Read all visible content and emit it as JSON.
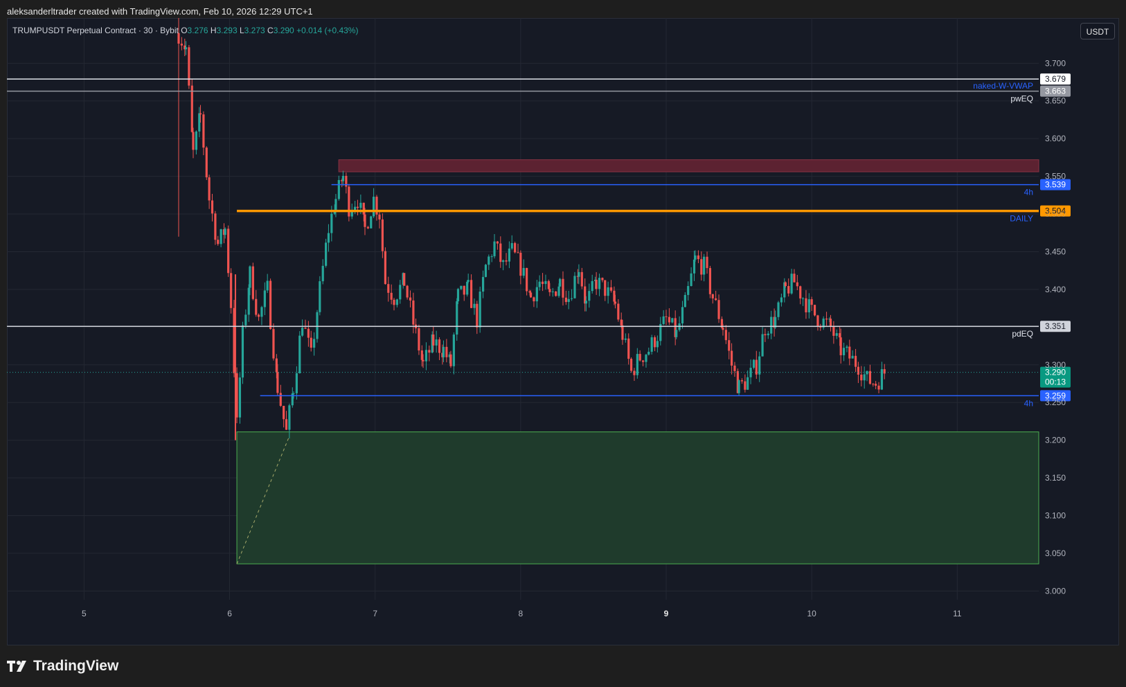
{
  "credit": "aleksanderltrader created with TradingView.com, Feb 10, 2026 12:29 UTC+1",
  "brand": "TradingView",
  "legend": {
    "symbol": "TRUMPUSDT Perpetual Contract · 30 · Bybit",
    "o_label": "O",
    "o": "3.276",
    "h_label": "H",
    "h": "3.293",
    "l_label": "L",
    "l": "3.273",
    "c_label": "C",
    "c": "3.290",
    "change": "+0.014 (+0.43%)"
  },
  "currency": "USDT",
  "colors": {
    "background": "#161a25",
    "up": "#26a69a",
    "down": "#ef5350",
    "grid": "#242833",
    "blue_line": "#2962ff",
    "orange_line": "#ff9800",
    "white_line": "#e0e3eb"
  },
  "chart_data": {
    "type": "candlestick",
    "x_ticks": [
      {
        "label": "5",
        "day": 5
      },
      {
        "label": "6",
        "day": 6
      },
      {
        "label": "7",
        "day": 7
      },
      {
        "label": "8",
        "day": 8
      },
      {
        "label": "9",
        "day": 9
      },
      {
        "label": "10",
        "day": 10
      },
      {
        "label": "11",
        "day": 11
      }
    ],
    "y_ticks": [
      "3.700",
      "3.650",
      "3.600",
      "3.550",
      "3.500",
      "3.450",
      "3.400",
      "3.350",
      "3.300",
      "3.250",
      "3.200",
      "3.150",
      "3.100",
      "3.050",
      "3.000"
    ],
    "ylim": [
      2.97,
      3.76
    ],
    "xlim": [
      4.47,
      11.56
    ],
    "anchors": [
      {
        "day": 5.65,
        "price": 3.74
      },
      {
        "day": 5.7,
        "price": 3.72
      },
      {
        "day": 5.75,
        "price": 3.58
      },
      {
        "day": 5.8,
        "price": 3.63
      },
      {
        "day": 5.86,
        "price": 3.52
      },
      {
        "day": 5.92,
        "price": 3.46
      },
      {
        "day": 5.97,
        "price": 3.48
      },
      {
        "day": 6.01,
        "price": 3.38
      },
      {
        "day": 6.05,
        "price": 3.22
      },
      {
        "day": 6.09,
        "price": 3.34
      },
      {
        "day": 6.14,
        "price": 3.42
      },
      {
        "day": 6.2,
        "price": 3.36
      },
      {
        "day": 6.26,
        "price": 3.4
      },
      {
        "day": 6.33,
        "price": 3.27
      },
      {
        "day": 6.39,
        "price": 3.21
      },
      {
        "day": 6.44,
        "price": 3.27
      },
      {
        "day": 6.5,
        "price": 3.36
      },
      {
        "day": 6.56,
        "price": 3.31
      },
      {
        "day": 6.62,
        "price": 3.4
      },
      {
        "day": 6.68,
        "price": 3.48
      },
      {
        "day": 6.73,
        "price": 3.52
      },
      {
        "day": 6.78,
        "price": 3.55
      },
      {
        "day": 6.82,
        "price": 3.51
      },
      {
        "day": 6.88,
        "price": 3.52
      },
      {
        "day": 6.93,
        "price": 3.48
      },
      {
        "day": 6.99,
        "price": 3.52
      },
      {
        "day": 7.03,
        "price": 3.5
      },
      {
        "day": 7.07,
        "price": 3.41
      },
      {
        "day": 7.13,
        "price": 3.39
      },
      {
        "day": 7.2,
        "price": 3.41
      },
      {
        "day": 7.28,
        "price": 3.34
      },
      {
        "day": 7.33,
        "price": 3.3
      },
      {
        "day": 7.4,
        "price": 3.33
      },
      {
        "day": 7.47,
        "price": 3.32
      },
      {
        "day": 7.52,
        "price": 3.3
      },
      {
        "day": 7.57,
        "price": 3.39
      },
      {
        "day": 7.64,
        "price": 3.4
      },
      {
        "day": 7.7,
        "price": 3.36
      },
      {
        "day": 7.76,
        "price": 3.43
      },
      {
        "day": 7.82,
        "price": 3.46
      },
      {
        "day": 7.88,
        "price": 3.43
      },
      {
        "day": 7.94,
        "price": 3.45
      },
      {
        "day": 8.0,
        "price": 3.43
      },
      {
        "day": 8.07,
        "price": 3.39
      },
      {
        "day": 8.13,
        "price": 3.41
      },
      {
        "day": 8.2,
        "price": 3.39
      },
      {
        "day": 8.27,
        "price": 3.41
      },
      {
        "day": 8.33,
        "price": 3.39
      },
      {
        "day": 8.4,
        "price": 3.43
      },
      {
        "day": 8.45,
        "price": 3.38
      },
      {
        "day": 8.52,
        "price": 3.41
      },
      {
        "day": 8.58,
        "price": 3.4
      },
      {
        "day": 8.65,
        "price": 3.38
      },
      {
        "day": 8.7,
        "price": 3.34
      },
      {
        "day": 8.76,
        "price": 3.29
      },
      {
        "day": 8.82,
        "price": 3.31
      },
      {
        "day": 8.88,
        "price": 3.32
      },
      {
        "day": 8.94,
        "price": 3.34
      },
      {
        "day": 9.0,
        "price": 3.36
      },
      {
        "day": 9.07,
        "price": 3.34
      },
      {
        "day": 9.13,
        "price": 3.38
      },
      {
        "day": 9.2,
        "price": 3.44
      },
      {
        "day": 9.26,
        "price": 3.43
      },
      {
        "day": 9.32,
        "price": 3.39
      },
      {
        "day": 9.39,
        "price": 3.35
      },
      {
        "day": 9.45,
        "price": 3.3
      },
      {
        "day": 9.5,
        "price": 3.27
      },
      {
        "day": 9.56,
        "price": 3.28
      },
      {
        "day": 9.62,
        "price": 3.3
      },
      {
        "day": 9.68,
        "price": 3.35
      },
      {
        "day": 9.75,
        "price": 3.36
      },
      {
        "day": 9.82,
        "price": 3.4
      },
      {
        "day": 9.88,
        "price": 3.41
      },
      {
        "day": 9.94,
        "price": 3.39
      },
      {
        "day": 10.0,
        "price": 3.37
      },
      {
        "day": 10.06,
        "price": 3.36
      },
      {
        "day": 10.13,
        "price": 3.35
      },
      {
        "day": 10.2,
        "price": 3.32
      },
      {
        "day": 10.26,
        "price": 3.31
      },
      {
        "day": 10.32,
        "price": 3.3
      },
      {
        "day": 10.38,
        "price": 3.28
      },
      {
        "day": 10.44,
        "price": 3.276
      },
      {
        "day": 10.5,
        "price": 3.29
      }
    ],
    "levels": [
      {
        "price": 3.679,
        "label": "",
        "tag": "3.679",
        "line": "#e0e3eb",
        "tagBg": "#ffffff",
        "tagFg": "#131722",
        "from": 4.47,
        "width": 1.5
      },
      {
        "price": 3.663,
        "label": "pwEQ",
        "tag": "3.663",
        "line": "#9598a1",
        "tagBg": "#9598a1",
        "tagFg": "#ffffff",
        "from": 4.47,
        "width": 1.5
      },
      {
        "price": 3.539,
        "label": "4h",
        "tag": "3.539",
        "line": "#2962ff",
        "tagBg": "#2962ff",
        "tagFg": "#ffffff",
        "from": 6.7,
        "width": 1.5
      },
      {
        "price": 3.504,
        "label": "DAILY",
        "tag": "3.504",
        "line": "#ff9800",
        "tagBg": "#ff9800",
        "tagFg": "#131722",
        "from": 6.05,
        "width": 3.5
      },
      {
        "price": 3.351,
        "label": "pdEQ",
        "tag": "3.351",
        "line": "#d1d4dc",
        "tagBg": "#d1d4dc",
        "tagFg": "#131722",
        "from": 4.47,
        "width": 1.5
      },
      {
        "price": 3.259,
        "label": "4h",
        "tag": "3.259",
        "line": "#2962ff",
        "tagBg": "#2962ff",
        "tagFg": "#ffffff",
        "from": 6.21,
        "width": 1.5
      }
    ],
    "vwap_text": "naked-W-VWAP",
    "zones": [
      {
        "day_from": 6.75,
        "day_to": 11.56,
        "price_top": 3.572,
        "price_bottom": 3.556,
        "fill": "#5c2231",
        "stroke": "#8a3344"
      },
      {
        "day_from": 6.05,
        "day_to": 11.56,
        "price_top": 3.211,
        "price_bottom": 3.036,
        "fill": "#1f3b2c",
        "stroke": "#4caf50"
      }
    ],
    "current": {
      "price": "3.290",
      "countdown": "00:13"
    }
  }
}
